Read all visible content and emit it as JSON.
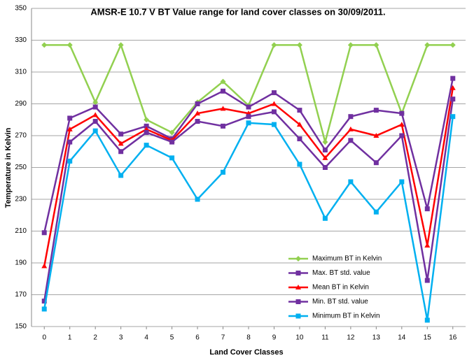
{
  "chart_data": {
    "type": "line",
    "title": "AMSR-E 10.7 V BT Value range for land cover classes on 30/09/2011.",
    "x_label": "Land Cover Classes",
    "y_label": "Temperature in Kelvin",
    "x": [
      0,
      1,
      2,
      3,
      4,
      5,
      6,
      7,
      8,
      9,
      10,
      11,
      12,
      13,
      14,
      15,
      16
    ],
    "xlim": [
      -0.5,
      16.5
    ],
    "xticks": [
      0,
      1,
      2,
      3,
      4,
      5,
      6,
      7,
      8,
      9,
      10,
      11,
      12,
      13,
      14,
      15,
      16
    ],
    "ylim": [
      150,
      350
    ],
    "yticks": [
      150,
      170,
      190,
      210,
      230,
      250,
      270,
      290,
      310,
      330,
      350
    ],
    "grid": true,
    "legend": "lower right",
    "series": [
      {
        "name": "Maximum BT in Kelvin",
        "color": "#92d050",
        "marker": "diamond",
        "values": [
          327,
          327,
          291,
          327,
          280,
          272,
          291,
          304,
          289,
          327,
          327,
          266,
          327,
          327,
          284,
          327,
          327
        ]
      },
      {
        "name": "Max. BT std. value",
        "color": "#7030a0",
        "marker": "square",
        "values": [
          209,
          281,
          288,
          271,
          276,
          268,
          290,
          298,
          288,
          297,
          286,
          261,
          282,
          286,
          284,
          224,
          306
        ]
      },
      {
        "name": "Mean BT in Kelvin",
        "color": "#ff0000",
        "marker": "triangle",
        "values": [
          188,
          274,
          283,
          265,
          274,
          267,
          284,
          287,
          284,
          290,
          277,
          256,
          274,
          270,
          277,
          201,
          300
        ]
      },
      {
        "name": "Min. BT std. value",
        "color": "#7030a0",
        "marker": "square",
        "values": [
          166,
          266,
          279,
          260,
          272,
          266,
          279,
          276,
          282,
          285,
          268,
          250,
          267,
          253,
          270,
          179,
          293
        ]
      },
      {
        "name": "Minimum BT in Kelvin",
        "color": "#00b0f0",
        "marker": "square",
        "values": [
          161,
          254,
          273,
          245,
          264,
          256,
          230,
          247,
          278,
          277,
          252,
          218,
          241,
          222,
          241,
          154,
          282
        ]
      }
    ]
  }
}
